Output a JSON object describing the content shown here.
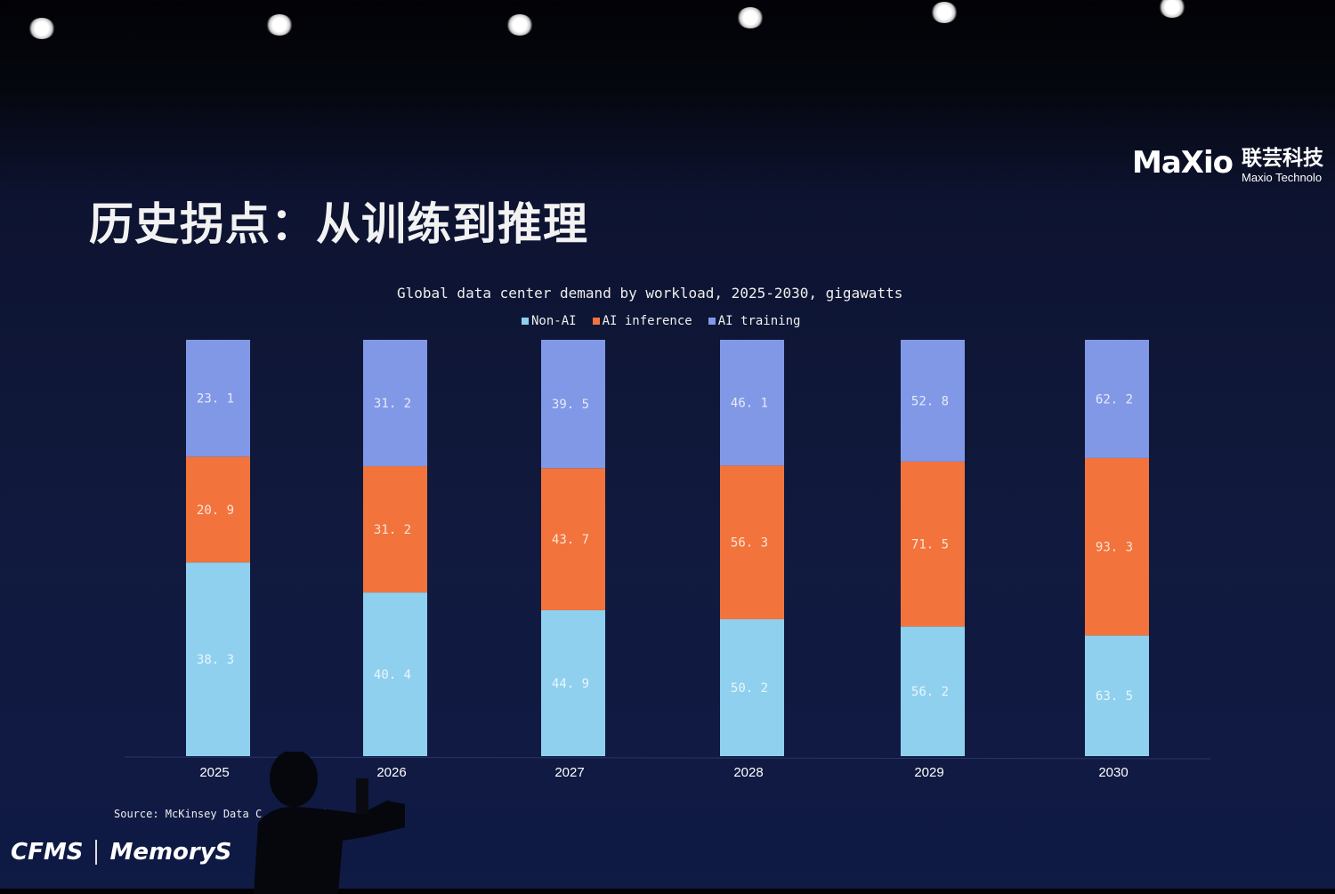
{
  "slide": {
    "title": "历史拐点：从训练到推理",
    "logo": {
      "mark": "MaXio",
      "cn": "联芸科技",
      "en": "Maxio Technolo"
    },
    "source": "Source: McKinsey Data C    Demand",
    "footer": {
      "brand1": "CFMS",
      "brand2": "MemoryS"
    }
  },
  "chart_data": {
    "type": "bar",
    "stacked": true,
    "normalized": true,
    "title": "Global data center demand by workload, 2025-2030, gigawatts",
    "legend_position": "top",
    "categories": [
      "2025",
      "2026",
      "2027",
      "2028",
      "2029",
      "2030"
    ],
    "series": [
      {
        "name": "Non-AI",
        "color": "#8fd0ee",
        "values": [
          38.3,
          40.4,
          44.9,
          50.2,
          56.2,
          63.5
        ]
      },
      {
        "name": "AI inference",
        "color": "#f2743c",
        "values": [
          20.9,
          31.2,
          43.7,
          56.3,
          71.5,
          93.3
        ]
      },
      {
        "name": "AI training",
        "color": "#8198e6",
        "values": [
          23.1,
          31.2,
          39.5,
          46.1,
          52.8,
          62.2
        ]
      }
    ],
    "grid": false
  }
}
